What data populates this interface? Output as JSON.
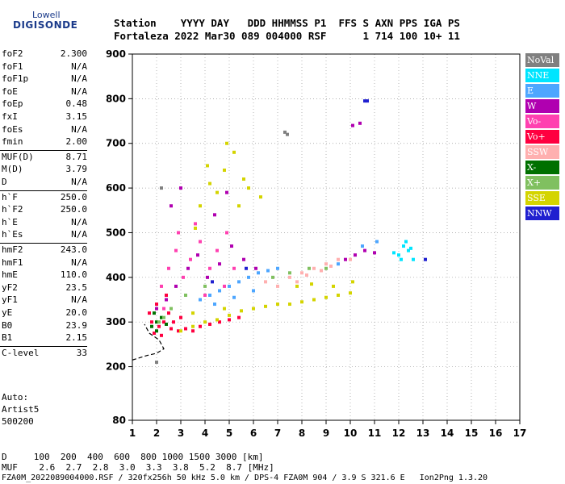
{
  "logo": {
    "top": "Lowell",
    "bottom": "DIGISONDE"
  },
  "header": {
    "row1": "Station    YYYY DAY   DDD HHMMSS P1  FFS S AXN PPS IGA PS",
    "row2": "Fortaleza 2022 Mar30 089 004000 RSF      1 714 100 10+ 11"
  },
  "params": [
    {
      "name": "foF2",
      "value": "2.300"
    },
    {
      "name": "foF1",
      "value": "N/A"
    },
    {
      "name": "foF1p",
      "value": "N/A"
    },
    {
      "name": "foE",
      "value": "N/A"
    },
    {
      "name": "foEp",
      "value": "0.48"
    },
    {
      "name": "fxI",
      "value": "3.15"
    },
    {
      "name": "foEs",
      "value": "N/A"
    },
    {
      "name": "fmin",
      "value": "2.00"
    },
    {
      "name": "MUF(D)",
      "value": "8.71"
    },
    {
      "name": "M(D)",
      "value": "3.79"
    },
    {
      "name": "D",
      "value": "N/A"
    },
    {
      "name": "h`F",
      "value": "250.0"
    },
    {
      "name": "h`F2",
      "value": "250.0"
    },
    {
      "name": "h`E",
      "value": "N/A"
    },
    {
      "name": "h`Es",
      "value": "N/A"
    },
    {
      "name": "hmF2",
      "value": "243.0"
    },
    {
      "name": "hmF1",
      "value": "N/A"
    },
    {
      "name": "hmE",
      "value": "110.0"
    },
    {
      "name": "yF2",
      "value": "23.5"
    },
    {
      "name": "yF1",
      "value": "N/A"
    },
    {
      "name": "yE",
      "value": "20.0"
    },
    {
      "name": "B0",
      "value": "23.9"
    },
    {
      "name": "B1",
      "value": "2.15"
    },
    {
      "name": "C-level",
      "value": "33"
    }
  ],
  "auto": {
    "line1": "Auto:",
    "line2": "Artist5",
    "line3": "500200"
  },
  "legend": [
    {
      "label": "NoVal",
      "color": "#808080"
    },
    {
      "label": "NNE",
      "color": "#00e5ff"
    },
    {
      "label": "E",
      "color": "#4da6ff"
    },
    {
      "label": "W",
      "color": "#b000b0"
    },
    {
      "label": "Vo-",
      "color": "#ff40b0"
    },
    {
      "label": "Vo+",
      "color": "#ff0040"
    },
    {
      "label": "SSW",
      "color": "#ffb0b0"
    },
    {
      "label": "X-",
      "color": "#007000"
    },
    {
      "label": "X+",
      "color": "#80c060"
    },
    {
      "label": "SSE",
      "color": "#d4d400"
    },
    {
      "label": "NNW",
      "color": "#2020d0"
    }
  ],
  "footer": {
    "d_row": "D     100  200  400  600  800 1000 1500 3000 [km]",
    "muf_row": "MUF    2.6  2.7  2.8  3.0  3.3  3.8  5.2  8.7 [MHz]",
    "file_row": "FZA0M_2022089004000.RSF / 320fx256h 50 kHz 5.0 km / DPS-4 FZA0M 904 / 3.9 S 321.6 E   Ion2Png 1.3.20"
  },
  "chart_data": {
    "type": "scatter",
    "xlim": [
      1,
      17
    ],
    "ylim": [
      80,
      900
    ],
    "x_ticks": [
      1,
      2,
      3,
      4,
      5,
      6,
      7,
      8,
      9,
      10,
      11,
      12,
      13,
      14,
      15,
      16,
      17
    ],
    "y_ticks": [
      80,
      200,
      300,
      400,
      500,
      600,
      700,
      800,
      900
    ],
    "grid": true,
    "legend_position": "right",
    "series": [
      {
        "name": "Vo+",
        "color": "#ff0040",
        "points": [
          [
            1.9,
            275
          ],
          [
            2.1,
            290
          ],
          [
            2.3,
            300
          ],
          [
            2.6,
            285
          ],
          [
            2.9,
            280
          ],
          [
            3.2,
            285
          ],
          [
            3.5,
            280
          ],
          [
            3.8,
            290
          ],
          [
            4.2,
            295
          ],
          [
            4.6,
            300
          ],
          [
            5.0,
            305
          ],
          [
            5.4,
            310
          ],
          [
            1.7,
            320
          ],
          [
            2.0,
            340
          ],
          [
            2.4,
            360
          ],
          [
            2.2,
            270
          ],
          [
            2.7,
            300
          ],
          [
            3.0,
            310
          ],
          [
            1.8,
            300
          ],
          [
            2.5,
            320
          ]
        ]
      },
      {
        "name": "Vo-",
        "color": "#ff40b0",
        "points": [
          [
            2.2,
            380
          ],
          [
            2.5,
            420
          ],
          [
            2.8,
            460
          ],
          [
            3.1,
            400
          ],
          [
            3.4,
            440
          ],
          [
            3.8,
            480
          ],
          [
            4.2,
            420
          ],
          [
            4.5,
            460
          ],
          [
            4.9,
            500
          ],
          [
            3.6,
            520
          ],
          [
            2.9,
            500
          ],
          [
            4.0,
            360
          ],
          [
            4.8,
            380
          ],
          [
            5.2,
            420
          ],
          [
            2.3,
            330
          ]
        ]
      },
      {
        "name": "W",
        "color": "#b000b0",
        "points": [
          [
            2.0,
            330
          ],
          [
            2.4,
            350
          ],
          [
            2.8,
            380
          ],
          [
            3.3,
            420
          ],
          [
            3.7,
            450
          ],
          [
            4.1,
            400
          ],
          [
            4.6,
            430
          ],
          [
            5.1,
            470
          ],
          [
            5.6,
            440
          ],
          [
            6.1,
            420
          ],
          [
            10.2,
            450
          ],
          [
            10.6,
            460
          ],
          [
            11.0,
            455
          ],
          [
            9.8,
            440
          ],
          [
            10.1,
            740
          ],
          [
            10.4,
            745
          ],
          [
            2.6,
            560
          ],
          [
            4.4,
            540
          ],
          [
            3.0,
            600
          ],
          [
            4.9,
            590
          ]
        ]
      },
      {
        "name": "E",
        "color": "#4da6ff",
        "points": [
          [
            3.8,
            350
          ],
          [
            4.2,
            360
          ],
          [
            4.6,
            370
          ],
          [
            5.0,
            380
          ],
          [
            5.4,
            390
          ],
          [
            5.8,
            400
          ],
          [
            6.2,
            410
          ],
          [
            6.6,
            415
          ],
          [
            7.0,
            420
          ],
          [
            4.4,
            340
          ],
          [
            5.2,
            355
          ],
          [
            6.0,
            370
          ],
          [
            10.5,
            470
          ],
          [
            11.1,
            480
          ],
          [
            9.5,
            430
          ]
        ]
      },
      {
        "name": "NNE",
        "color": "#00e5ff",
        "points": [
          [
            12.0,
            450
          ],
          [
            12.2,
            470
          ],
          [
            12.4,
            460
          ],
          [
            12.6,
            440
          ],
          [
            12.3,
            480
          ],
          [
            11.8,
            455
          ],
          [
            12.5,
            465
          ],
          [
            12.1,
            440
          ]
        ]
      },
      {
        "name": "SSW",
        "color": "#ffb0b0",
        "points": [
          [
            7.5,
            400
          ],
          [
            8.0,
            410
          ],
          [
            8.5,
            420
          ],
          [
            9.0,
            430
          ],
          [
            9.5,
            440
          ],
          [
            7.8,
            390
          ],
          [
            8.2,
            405
          ],
          [
            8.8,
            415
          ],
          [
            9.2,
            425
          ],
          [
            10.0,
            440
          ],
          [
            6.5,
            390
          ],
          [
            7.0,
            380
          ]
        ]
      },
      {
        "name": "X-",
        "color": "#007000",
        "points": [
          [
            1.8,
            290
          ],
          [
            2.0,
            300
          ],
          [
            2.2,
            310
          ],
          [
            2.0,
            280
          ],
          [
            2.4,
            295
          ],
          [
            1.9,
            320
          ]
        ]
      },
      {
        "name": "X+",
        "color": "#80c060",
        "points": [
          [
            2.1,
            300
          ],
          [
            2.3,
            310
          ],
          [
            2.6,
            330
          ],
          [
            3.2,
            360
          ],
          [
            4.0,
            380
          ],
          [
            6.8,
            400
          ],
          [
            7.5,
            410
          ],
          [
            8.3,
            420
          ],
          [
            9.0,
            420
          ]
        ]
      },
      {
        "name": "SSE",
        "color": "#d4d400",
        "points": [
          [
            3.0,
            280
          ],
          [
            3.5,
            290
          ],
          [
            4.0,
            300
          ],
          [
            4.5,
            305
          ],
          [
            5.0,
            315
          ],
          [
            5.5,
            325
          ],
          [
            6.0,
            330
          ],
          [
            6.5,
            335
          ],
          [
            7.0,
            340
          ],
          [
            7.5,
            340
          ],
          [
            8.0,
            345
          ],
          [
            8.5,
            350
          ],
          [
            9.0,
            355
          ],
          [
            9.5,
            360
          ],
          [
            10.0,
            365
          ],
          [
            7.8,
            380
          ],
          [
            8.4,
            385
          ],
          [
            9.3,
            380
          ],
          [
            10.1,
            390
          ],
          [
            4.2,
            610
          ],
          [
            4.8,
            640
          ],
          [
            5.2,
            680
          ],
          [
            3.8,
            560
          ],
          [
            4.5,
            590
          ],
          [
            5.6,
            620
          ],
          [
            4.9,
            700
          ],
          [
            5.4,
            560
          ],
          [
            3.6,
            510
          ],
          [
            4.1,
            650
          ],
          [
            5.8,
            600
          ],
          [
            6.3,
            580
          ],
          [
            3.5,
            320
          ],
          [
            4.8,
            330
          ]
        ]
      },
      {
        "name": "NNW",
        "color": "#2020d0",
        "points": [
          [
            10.6,
            795
          ],
          [
            10.7,
            795
          ],
          [
            4.3,
            390
          ],
          [
            5.7,
            420
          ],
          [
            13.1,
            440
          ]
        ]
      },
      {
        "name": "NoVal",
        "color": "#808080",
        "points": [
          [
            2.0,
            210
          ],
          [
            2.2,
            600
          ],
          [
            7.3,
            725
          ],
          [
            7.4,
            720
          ]
        ]
      }
    ],
    "trace": {
      "color": "#000000",
      "points": [
        [
          1,
          215
        ],
        [
          1.6,
          225
        ],
        [
          2.0,
          230
        ],
        [
          2.3,
          240
        ],
        [
          2.1,
          260
        ],
        [
          1.7,
          275
        ],
        [
          1.5,
          295
        ]
      ]
    }
  }
}
